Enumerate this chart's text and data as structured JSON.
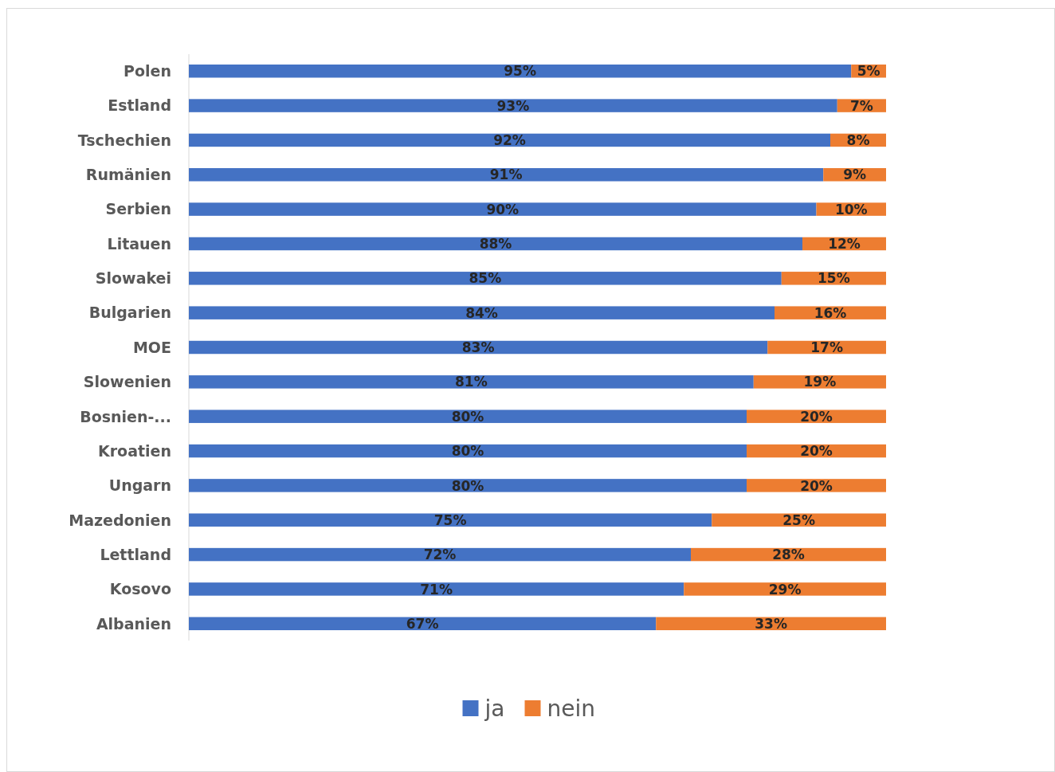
{
  "chart_data": {
    "type": "bar",
    "orientation": "horizontal",
    "stacked": true,
    "legend": "bottom",
    "categories": [
      "Polen",
      "Estland",
      "Tschechien",
      "Rumänien",
      "Serbien",
      "Litauen",
      "Slowakei",
      "Bulgarien",
      "MOE",
      "Slowenien",
      "Bosnien-...",
      "Kroatien",
      "Ungarn",
      "Mazedonien",
      "Lettland",
      "Kosovo",
      "Albanien"
    ],
    "series": [
      {
        "name": "ja",
        "color": "#4472c4",
        "values": [
          95,
          93,
          92,
          91,
          90,
          88,
          85,
          84,
          83,
          81,
          80,
          80,
          80,
          75,
          72,
          71,
          67
        ],
        "value_labels": [
          "95%",
          "93%",
          "92%",
          "91%",
          "90%",
          "88%",
          "85%",
          "84%",
          "83%",
          "81%",
          "80%",
          "80%",
          "80%",
          "75%",
          "72%",
          "71%",
          "67%"
        ]
      },
      {
        "name": "nein",
        "color": "#ed7d31",
        "values": [
          5,
          7,
          8,
          9,
          10,
          12,
          15,
          16,
          17,
          19,
          20,
          20,
          20,
          25,
          28,
          29,
          33
        ],
        "value_labels": [
          "5%",
          "7%",
          "8%",
          "9%",
          "10%",
          "12%",
          "15%",
          "16%",
          "17%",
          "19%",
          "20%",
          "20%",
          "20%",
          "25%",
          "28%",
          "29%",
          "33%"
        ]
      }
    ]
  }
}
